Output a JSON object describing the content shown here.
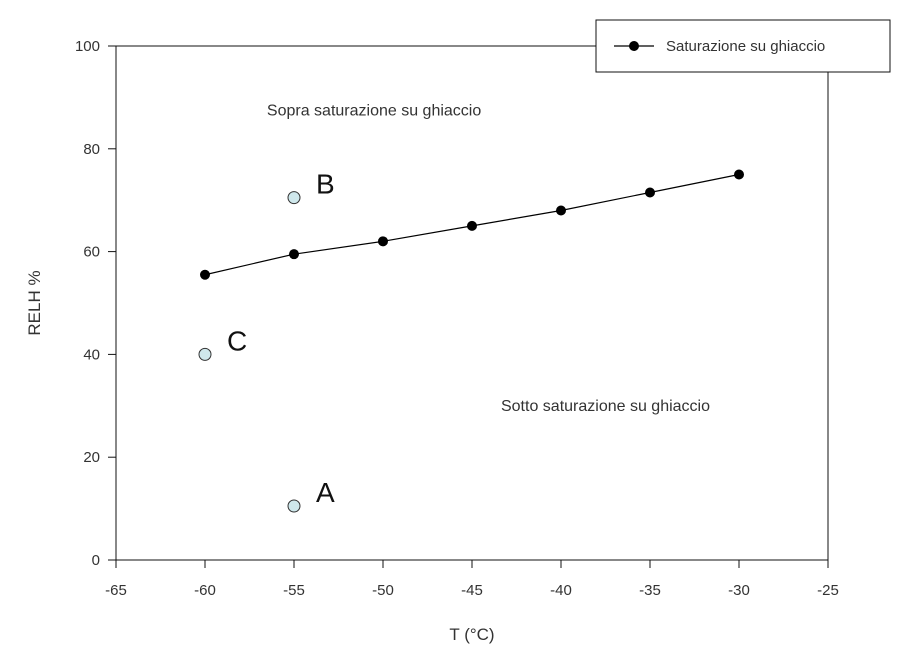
{
  "chart_data": {
    "type": "scatter",
    "title": "",
    "xlabel": "T (°C)",
    "ylabel": "RELH %",
    "xlim": [
      -65,
      -25
    ],
    "ylim": [
      0,
      100
    ],
    "xticks": [
      -65,
      -60,
      -55,
      -50,
      -45,
      -40,
      -35,
      -30,
      -25
    ],
    "yticks": [
      0,
      20,
      40,
      60,
      80,
      100
    ],
    "grid": false,
    "legend_position": "top-right",
    "series": [
      {
        "name": "Saturazione su ghiaccio",
        "style": "line-with-markers",
        "color": "#000000",
        "x": [
          -60,
          -55,
          -50,
          -45,
          -40,
          -35,
          -30
        ],
        "y": [
          55.5,
          59.5,
          62,
          65,
          68,
          71.5,
          75
        ]
      }
    ],
    "points": [
      {
        "label": "A",
        "x": -55,
        "y": 10.5,
        "color": "#cfe8ec"
      },
      {
        "label": "B",
        "x": -55,
        "y": 70.5,
        "color": "#cfe8ec"
      },
      {
        "label": "C",
        "x": -60,
        "y": 40,
        "color": "#cfe8ec"
      }
    ],
    "annotations": [
      {
        "text": "Sopra saturazione su ghiaccio",
        "x": -50.5,
        "y": 86.5
      },
      {
        "text": "Sotto saturazione su ghiaccio",
        "x": -37.5,
        "y": 29
      }
    ]
  }
}
